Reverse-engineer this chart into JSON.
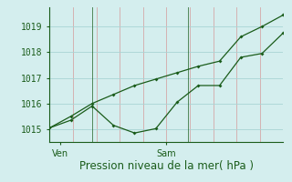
{
  "title": "Pression niveau de la mer( hPa )",
  "bg_color": "#d4eeee",
  "line_color": "#1a5c1a",
  "grid_color_v": "#d4a8a8",
  "grid_color_h": "#a8d4d4",
  "line1_x": [
    0,
    1,
    2,
    3,
    4,
    5,
    6,
    7,
    8,
    9,
    10,
    11
  ],
  "line1_y": [
    1015.05,
    1015.35,
    1015.9,
    1015.15,
    1014.85,
    1015.02,
    1016.05,
    1016.7,
    1016.7,
    1017.8,
    1017.95,
    1018.75
  ],
  "line2_x": [
    0,
    1,
    2,
    3,
    4,
    5,
    6,
    7,
    8,
    9,
    10,
    11
  ],
  "line2_y": [
    1015.05,
    1015.5,
    1016.0,
    1016.35,
    1016.7,
    1016.95,
    1017.2,
    1017.45,
    1017.65,
    1018.6,
    1019.0,
    1019.45
  ],
  "xtick_positions": [
    0.5,
    5.5
  ],
  "xtick_labels": [
    "Ven",
    "Sam"
  ],
  "ytick_values": [
    1015,
    1016,
    1017,
    1018,
    1019
  ],
  "ylim": [
    1014.5,
    1019.75
  ],
  "xlim": [
    0,
    11
  ],
  "vline_x": [
    2.0,
    6.5
  ],
  "vline_color": "#aaaaaa",
  "num_v_grid": 10,
  "title_fontsize": 8.5,
  "tick_fontsize": 7
}
